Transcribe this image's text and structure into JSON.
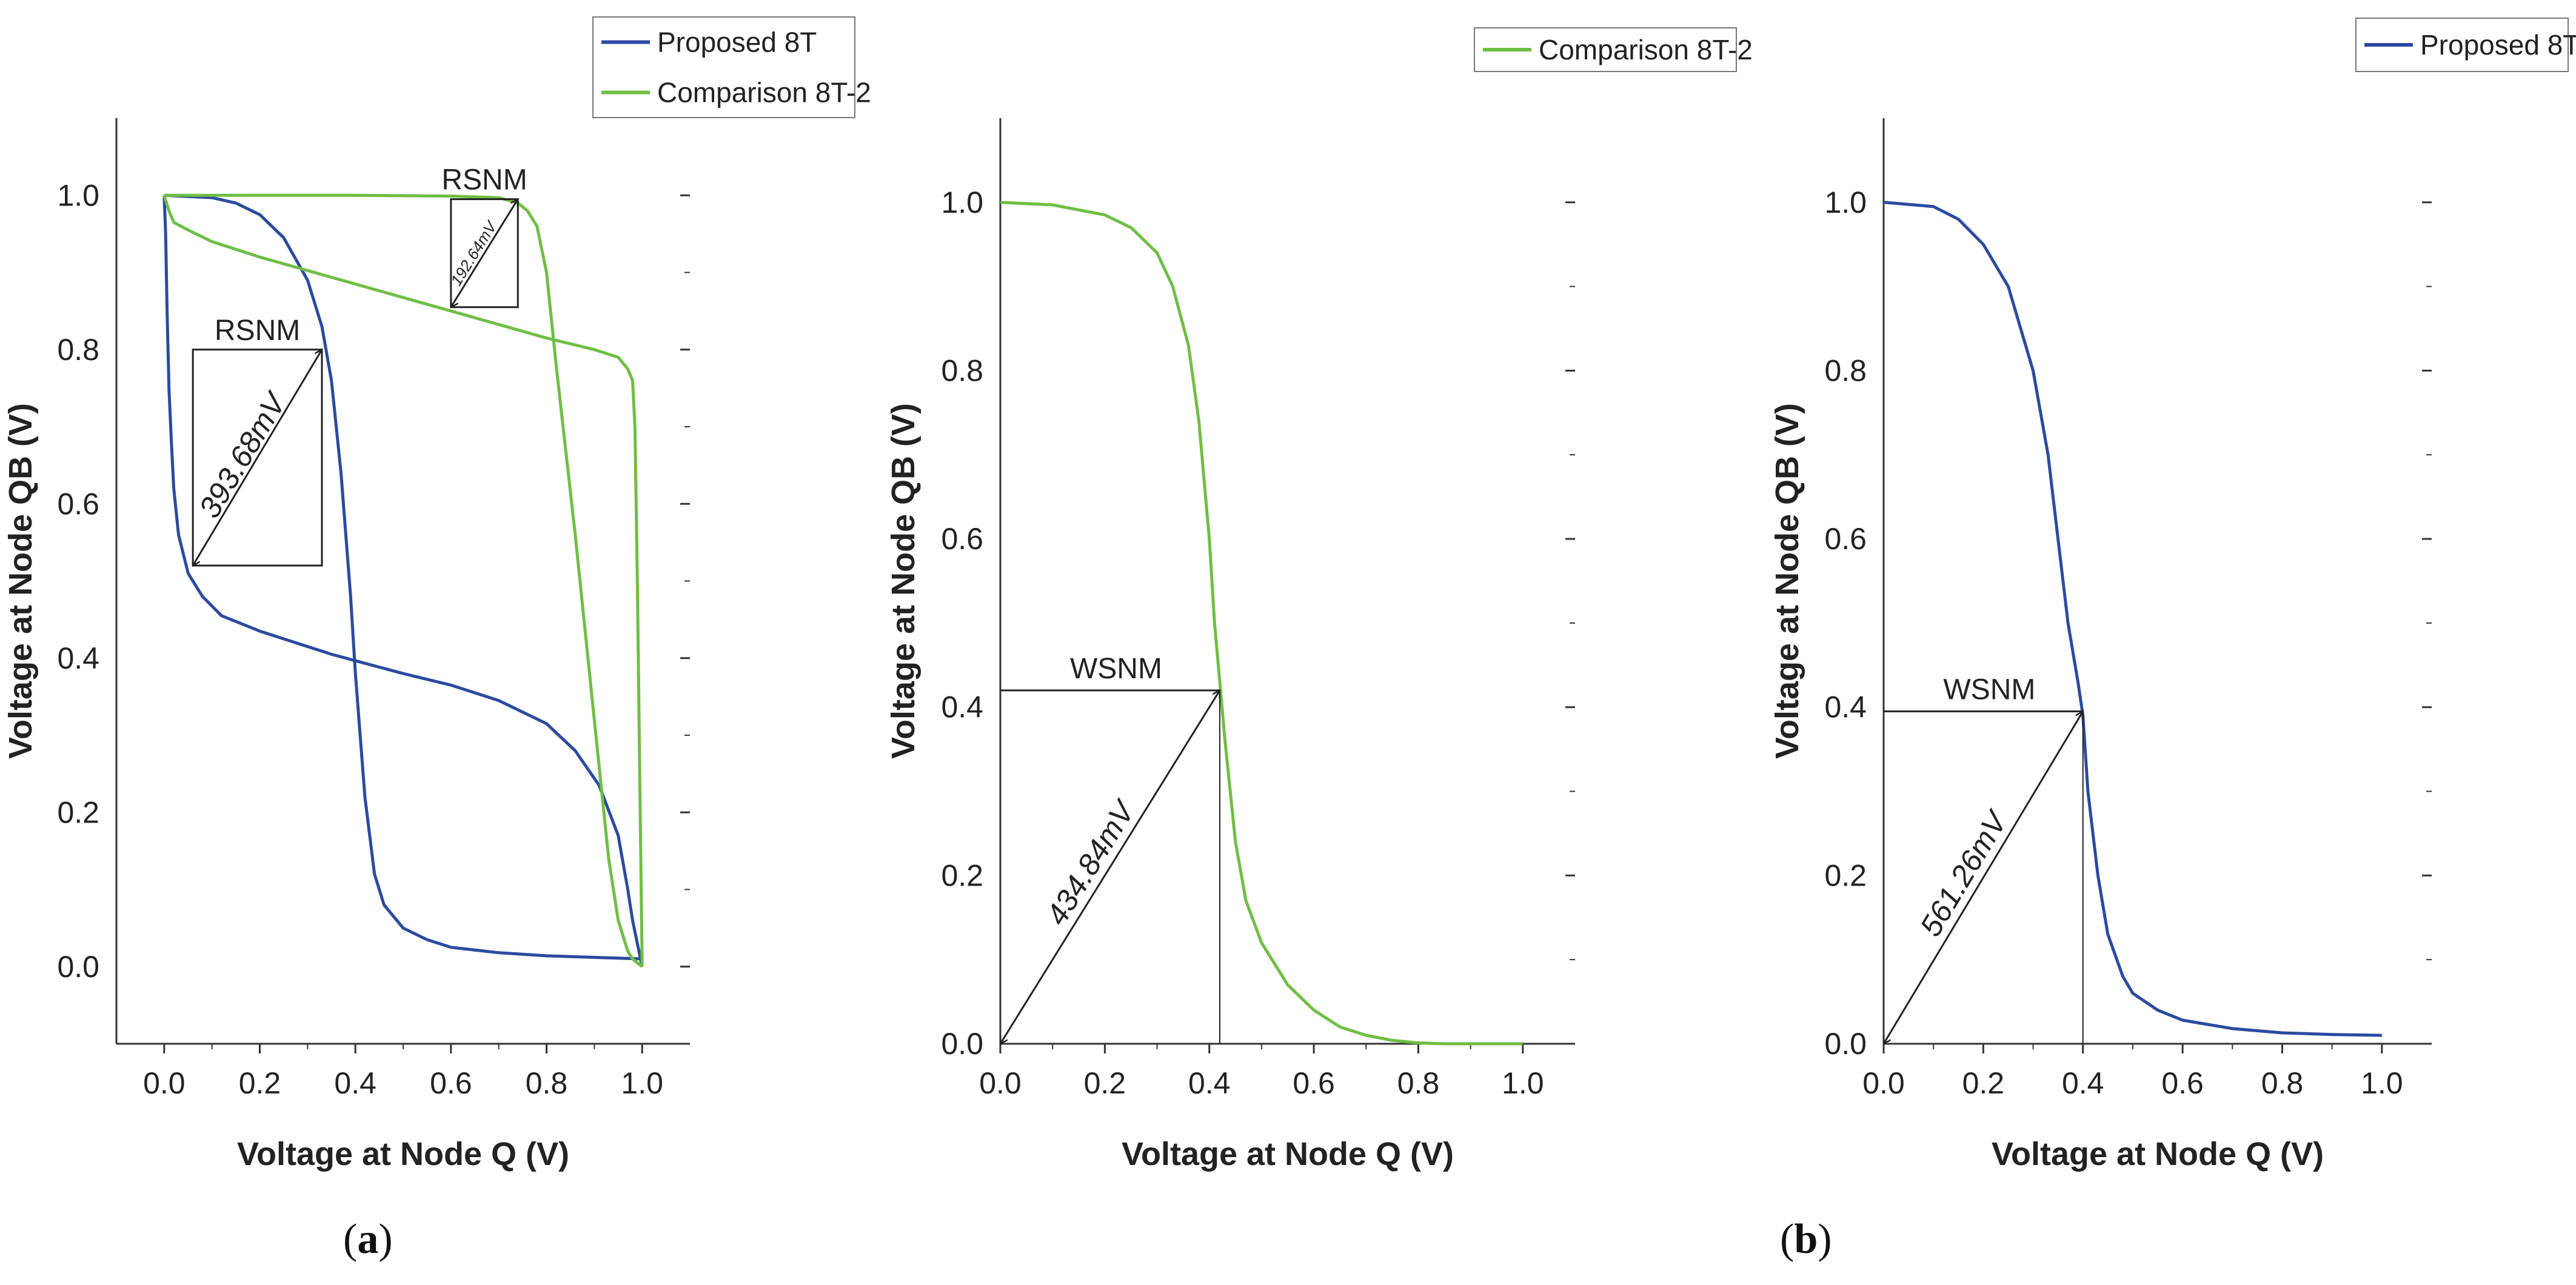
{
  "colors": {
    "proposed": "#2b4aa0",
    "comparison": "#6fbe44",
    "axis": "#333333",
    "annotation": "#222222"
  },
  "captions": {
    "a": "a",
    "b": "b"
  },
  "chart_data": [
    {
      "id": "a",
      "type": "line",
      "title": "",
      "xlabel": "Voltage at Node Q (V)",
      "ylabel": "Voltage at Node QB (V)",
      "xlim": [
        -0.1,
        1.1
      ],
      "ylim": [
        -0.1,
        1.1
      ],
      "xticks": [
        "0.0",
        "0.2",
        "0.4",
        "0.6",
        "0.8",
        "1.0"
      ],
      "yticks": [
        "0.0",
        "0.2",
        "0.4",
        "0.6",
        "0.8",
        "1.0"
      ],
      "legend": [
        "Proposed 8T",
        "Comparison 8T-2"
      ],
      "series": [
        {
          "name": "Proposed 8T",
          "color_key": "proposed",
          "x": [
            0.0,
            0.1,
            0.15,
            0.2,
            0.25,
            0.3,
            0.33,
            0.35,
            0.37,
            0.39,
            0.4,
            0.42,
            0.44,
            0.46,
            0.5,
            0.55,
            0.6,
            0.7,
            0.8,
            0.9,
            1.0
          ],
          "y": [
            1.0,
            0.997,
            0.99,
            0.975,
            0.945,
            0.89,
            0.83,
            0.76,
            0.64,
            0.48,
            0.38,
            0.22,
            0.12,
            0.08,
            0.05,
            0.035,
            0.025,
            0.018,
            0.014,
            0.012,
            0.01
          ]
        },
        {
          "name": "Proposed 8T mirrored",
          "color_key": "proposed",
          "x": [
            0.0,
            0.003,
            0.006,
            0.01,
            0.015,
            0.02,
            0.03,
            0.05,
            0.08,
            0.12,
            0.2,
            0.35,
            0.5,
            0.6,
            0.7,
            0.8,
            0.86,
            0.91,
            0.95,
            0.97,
            0.98,
            0.99,
            1.0
          ],
          "y": [
            1.0,
            0.95,
            0.85,
            0.75,
            0.68,
            0.62,
            0.56,
            0.51,
            0.48,
            0.455,
            0.435,
            0.405,
            0.38,
            0.365,
            0.345,
            0.315,
            0.28,
            0.235,
            0.17,
            0.1,
            0.06,
            0.03,
            0.0
          ]
        },
        {
          "name": "Comparison 8T-2",
          "color_key": "comparison",
          "x": [
            0.0,
            0.1,
            0.2,
            0.4,
            0.6,
            0.7,
            0.74,
            0.76,
            0.78,
            0.8,
            0.82,
            0.86,
            0.9,
            0.93,
            0.95,
            0.97,
            0.98,
            1.0
          ],
          "y": [
            1.0,
            1.0,
            1.0,
            1.0,
            0.999,
            0.997,
            0.99,
            0.98,
            0.96,
            0.9,
            0.78,
            0.56,
            0.32,
            0.14,
            0.06,
            0.02,
            0.01,
            0.0
          ]
        },
        {
          "name": "Comparison 8T-2 mirrored",
          "color_key": "comparison",
          "x": [
            0.0,
            0.01,
            0.02,
            0.05,
            0.1,
            0.2,
            0.4,
            0.6,
            0.8,
            0.9,
            0.95,
            0.97,
            0.98,
            0.985,
            0.99,
            0.995,
            1.0
          ],
          "y": [
            1.0,
            0.98,
            0.965,
            0.955,
            0.94,
            0.92,
            0.885,
            0.85,
            0.815,
            0.8,
            0.79,
            0.775,
            0.76,
            0.7,
            0.5,
            0.25,
            0.0
          ]
        }
      ],
      "annotations": [
        {
          "label": "RSNM",
          "value": "393.68mV",
          "box": [
            0.06,
            0.52,
            0.33,
            0.8
          ]
        },
        {
          "label": "RSNM",
          "value": "192.64mV",
          "box": [
            0.6,
            0.855,
            0.74,
            0.995
          ]
        }
      ]
    },
    {
      "id": "b1",
      "type": "line",
      "title": "",
      "xlabel": "Voltage at Node Q (V)",
      "ylabel": "Voltage at Node QB (V)",
      "xlim": [
        0.0,
        1.1
      ],
      "ylim": [
        0.0,
        1.1
      ],
      "xticks": [
        "0.0",
        "0.2",
        "0.4",
        "0.6",
        "0.8",
        "1.0"
      ],
      "yticks": [
        "0.0",
        "0.2",
        "0.4",
        "0.6",
        "0.8",
        "1.0"
      ],
      "legend": [
        "Comparison 8T-2"
      ],
      "series": [
        {
          "name": "Comparison 8T-2",
          "color_key": "comparison",
          "x": [
            0.0,
            0.1,
            0.2,
            0.25,
            0.3,
            0.33,
            0.36,
            0.38,
            0.4,
            0.41,
            0.42,
            0.43,
            0.44,
            0.45,
            0.47,
            0.5,
            0.55,
            0.6,
            0.65,
            0.7,
            0.75,
            0.8,
            0.85,
            0.9,
            1.0
          ],
          "y": [
            1.0,
            0.997,
            0.985,
            0.97,
            0.94,
            0.9,
            0.83,
            0.74,
            0.6,
            0.5,
            0.43,
            0.36,
            0.3,
            0.24,
            0.17,
            0.12,
            0.07,
            0.04,
            0.02,
            0.01,
            0.004,
            0.001,
            0.0,
            0.0,
            0.0
          ]
        }
      ],
      "annotations": [
        {
          "label": "WSNM",
          "value": "434.84mV",
          "point": [
            0.42,
            0.42
          ]
        }
      ]
    },
    {
      "id": "b2",
      "type": "line",
      "title": "",
      "xlabel": "Voltage at Node Q (V)",
      "ylabel": "Voltage at Node QB (V)",
      "xlim": [
        0.0,
        1.1
      ],
      "ylim": [
        0.0,
        1.1
      ],
      "xticks": [
        "0.0",
        "0.2",
        "0.4",
        "0.6",
        "0.8",
        "1.0"
      ],
      "yticks": [
        "0.0",
        "0.2",
        "0.4",
        "0.6",
        "0.8",
        "1.0"
      ],
      "legend": [
        "Proposed 8T"
      ],
      "series": [
        {
          "name": "Proposed 8T",
          "color_key": "proposed",
          "x": [
            0.0,
            0.1,
            0.15,
            0.2,
            0.25,
            0.3,
            0.33,
            0.35,
            0.37,
            0.39,
            0.4,
            0.41,
            0.43,
            0.45,
            0.48,
            0.5,
            0.55,
            0.6,
            0.7,
            0.8,
            0.9,
            1.0
          ],
          "y": [
            1.0,
            0.995,
            0.98,
            0.95,
            0.9,
            0.8,
            0.7,
            0.6,
            0.5,
            0.43,
            0.39,
            0.3,
            0.2,
            0.13,
            0.08,
            0.06,
            0.04,
            0.028,
            0.018,
            0.013,
            0.011,
            0.01
          ]
        }
      ],
      "annotations": [
        {
          "label": "WSNM",
          "value": "561.26mV",
          "point": [
            0.4,
            0.395
          ]
        }
      ]
    }
  ]
}
